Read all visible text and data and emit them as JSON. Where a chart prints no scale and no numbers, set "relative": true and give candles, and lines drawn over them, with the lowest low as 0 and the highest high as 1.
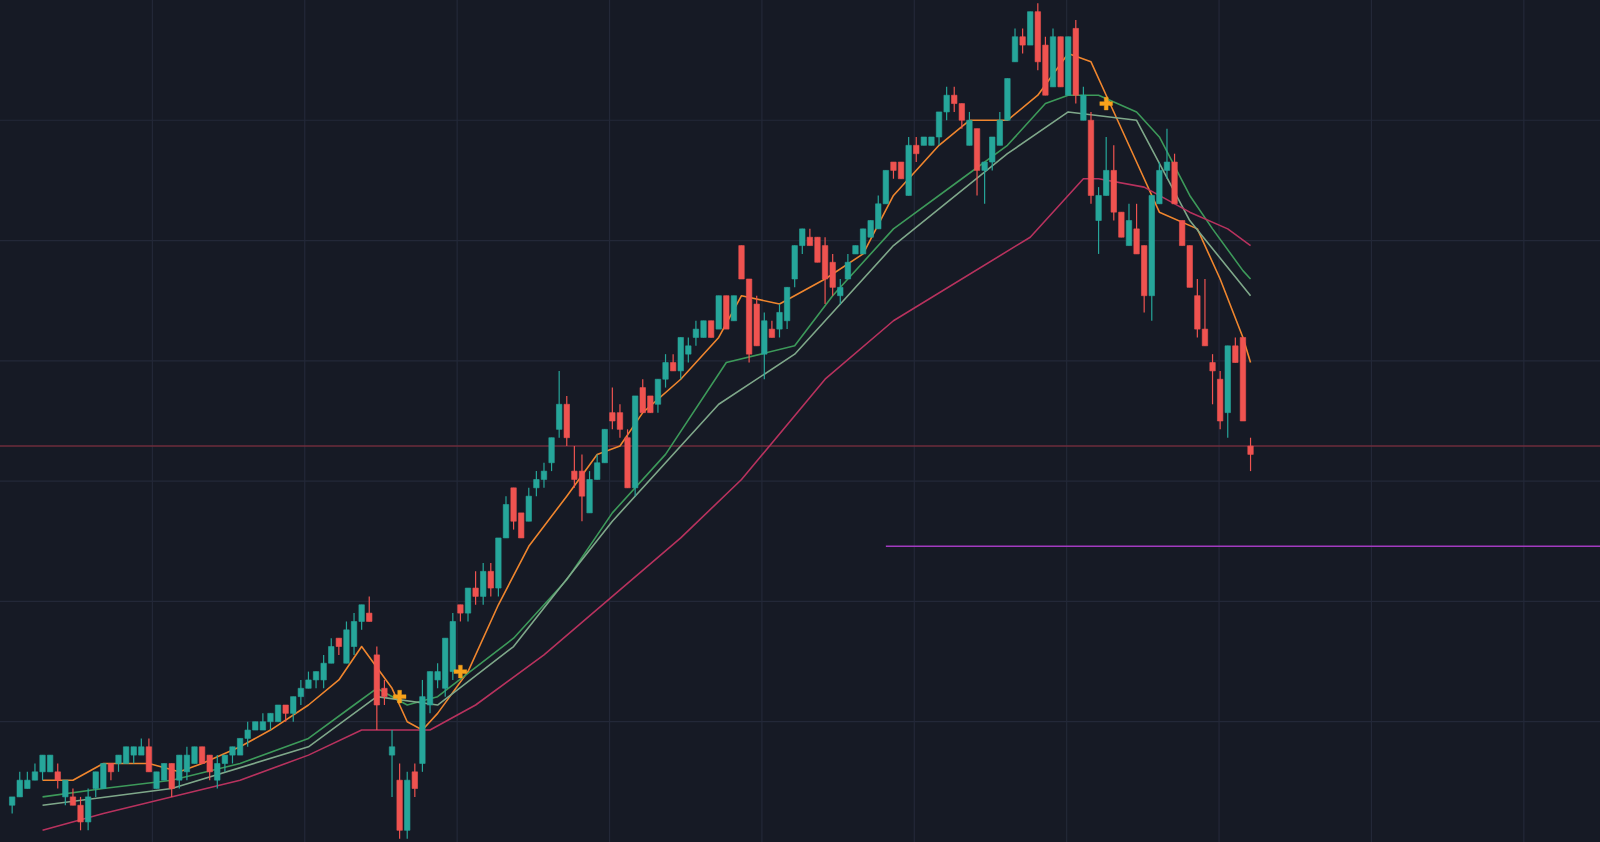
{
  "chart_data": {
    "type": "candlestick",
    "relative": true,
    "grid": true,
    "colors": [
      "#26a69a",
      "#26a69a",
      "#26a69a",
      "#26a69a",
      "#26a69a",
      "#26a69a",
      "#ef5350",
      "#26a69a",
      "#ef5350",
      "#ef5350",
      "#26a69a",
      "#26a69a",
      "#26a69a",
      "#ef5350",
      "#26a69a",
      "#26a69a",
      "#26a69a",
      "#26a69a",
      "#ef5350",
      "#26a69a",
      "#26a69a",
      "#ef5350",
      "#26a69a",
      "#26a69a",
      "#26a69a",
      "#ef5350",
      "#ef5350",
      "#26a69a",
      "#26a69a",
      "#26a69a",
      "#26a69a",
      "#26a69a",
      "#26a69a",
      "#26a69a",
      "#26a69a",
      "#26a69a",
      "#ef5350",
      "#26a69a",
      "#26a69a",
      "#26a69a",
      "#26a69a",
      "#26a69a",
      "#26a69a",
      "#ef5350",
      "#26a69a",
      "#26a69a",
      "#26a69a",
      "#ef5350",
      "#ef5350",
      "#ef5350",
      "#26a69a",
      "#ef5350",
      "#26a69a",
      "#ef5350",
      "#26a69a",
      "#26a69a",
      "#26a69a",
      "#26a69a",
      "#26a69a",
      "#ef5350",
      "#26a69a",
      "#ef5350",
      "#26a69a",
      "#ef5350",
      "#26a69a",
      "#26a69a",
      "#ef5350",
      "#ef5350",
      "#26a69a",
      "#26a69a",
      "#26a69a",
      "#26a69a",
      "#26a69a",
      "#ef5350",
      "#ef5350",
      "#ef5350",
      "#26a69a",
      "#26a69a",
      "#26a69a",
      "#ef5350",
      "#ef5350",
      "#ef5350",
      "#26a69a",
      "#ef5350",
      "#ef5350",
      "#26a69a",
      "#26a69a",
      "#ef5350",
      "#26a69a",
      "#26a69a",
      "#26a69a",
      "#26a69a",
      "#ef5350",
      "#26a69a",
      "#ef5350",
      "#26a69a",
      "#ef5350",
      "#ef5350",
      "#ef5350",
      "#26a69a",
      "#ef5350",
      "#26a69a",
      "#26a69a",
      "#26a69a",
      "#26a69a",
      "#ef5350",
      "#ef5350",
      "#ef5350",
      "#ef5350",
      "#26a69a",
      "#26a69a",
      "#26a69a",
      "#26a69a",
      "#26a69a",
      "#26a69a",
      "#26a69a",
      "#ef5350",
      "#ef5350",
      "#26a69a",
      "#ef5350",
      "#26a69a",
      "#26a69a",
      "#26a69a",
      "#26a69a",
      "#ef5350",
      "#ef5350",
      "#26a69a",
      "#ef5350",
      "#26a69a",
      "#26a69a",
      "#26a69a",
      "#26a69a",
      "#26a69a",
      "#ef5350",
      "#26a69a",
      "#ef5350",
      "#ef5350",
      "#26a69a",
      "#ef5350",
      "#26a69a",
      "#ef5350",
      "#26a69a",
      "#ef5350",
      "#26a69a",
      "#26a69a",
      "#ef5350",
      "#ef5350",
      "#26a69a",
      "#ef5350",
      "#ef5350",
      "#26a69a",
      "#26a69a",
      "#26a69a",
      "#ef5350",
      "#ef5350",
      "#ef5350",
      "#ef5350",
      "#ef5350",
      "#ef5350",
      "#ef5350",
      "#26a69a",
      "#ef5350",
      "#ef5350",
      "#ef5350",
      null,
      null,
      null,
      null,
      null,
      null,
      null,
      null,
      null,
      null,
      null,
      null,
      null,
      null,
      null,
      null,
      null,
      null,
      null,
      null,
      null,
      null,
      null,
      null,
      null,
      null,
      null,
      null,
      null,
      null,
      null,
      null,
      null,
      null,
      null,
      null,
      null,
      null,
      null,
      null,
      null,
      null,
      null,
      null,
      null,
      null
    ],
    "categories": [
      null,
      null,
      null,
      null,
      null,
      null,
      null,
      null,
      null,
      null,
      null,
      null,
      null,
      null,
      null,
      null,
      null,
      null,
      null,
      null,
      null,
      null,
      null,
      null,
      null,
      null,
      null,
      null,
      null,
      null,
      null,
      null,
      null,
      null,
      null,
      null,
      null,
      null,
      null,
      null,
      null,
      null,
      null,
      null,
      null,
      null,
      null,
      null,
      null,
      null,
      null,
      null,
      null,
      null,
      null,
      null,
      null,
      null,
      null,
      null,
      null,
      null,
      null,
      null,
      null,
      null,
      null,
      null,
      null,
      null,
      null,
      null,
      null,
      null,
      null,
      null,
      null,
      null,
      null,
      null,
      null,
      null,
      null,
      null,
      null,
      null,
      null,
      null,
      null,
      null,
      null,
      null,
      null,
      null,
      null,
      null,
      null,
      null,
      null,
      null,
      null,
      null,
      null,
      null,
      null,
      null,
      null,
      null,
      null,
      null,
      null,
      null,
      null,
      null,
      null,
      null,
      null,
      null,
      null,
      null,
      null,
      null,
      null,
      null,
      null,
      null,
      null,
      null,
      null,
      null,
      null,
      null,
      null,
      null,
      null,
      null,
      null,
      null,
      null,
      null,
      null,
      null,
      null,
      null,
      null,
      null,
      null,
      null,
      null,
      null,
      null,
      null,
      null,
      null,
      null,
      null,
      null,
      null,
      null,
      null,
      null,
      null,
      null,
      null,
      null,
      null,
      null,
      null,
      null,
      null,
      null,
      null,
      null,
      null,
      null,
      null,
      null,
      null,
      null,
      null,
      null,
      null,
      null,
      null,
      null,
      null,
      null,
      null,
      null,
      null,
      null,
      null,
      null,
      null,
      null,
      null,
      null,
      null,
      null,
      null,
      null,
      null,
      null,
      null,
      null,
      null,
      null,
      null,
      null,
      null
    ],
    "ohlc": [
      [
        0.04,
        0.05,
        0.03,
        0.05
      ],
      [
        0.05,
        0.08,
        0.05,
        0.07
      ],
      [
        0.06,
        0.08,
        0.06,
        0.07
      ],
      [
        0.07,
        0.09,
        0.07,
        0.08
      ],
      [
        0.08,
        0.1,
        0.07,
        0.1
      ],
      [
        0.08,
        0.1,
        0.08,
        0.1
      ],
      [
        0.08,
        0.09,
        0.06,
        0.07
      ],
      [
        0.05,
        0.07,
        0.04,
        0.07
      ],
      [
        0.05,
        0.06,
        0.04,
        0.04
      ],
      [
        0.04,
        0.05,
        0.01,
        0.02
      ],
      [
        0.02,
        0.06,
        0.01,
        0.05
      ],
      [
        0.06,
        0.08,
        0.05,
        0.08
      ],
      [
        0.06,
        0.09,
        0.06,
        0.09
      ],
      [
        0.09,
        0.09,
        0.07,
        0.08
      ],
      [
        0.09,
        0.1,
        0.08,
        0.1
      ],
      [
        0.09,
        0.11,
        0.09,
        0.11
      ],
      [
        0.1,
        0.11,
        0.09,
        0.11
      ],
      [
        0.1,
        0.12,
        0.1,
        0.11
      ],
      [
        0.11,
        0.12,
        0.08,
        0.08
      ],
      [
        0.06,
        0.08,
        0.06,
        0.08
      ],
      [
        0.07,
        0.09,
        0.07,
        0.09
      ],
      [
        0.09,
        0.09,
        0.05,
        0.06
      ],
      [
        0.07,
        0.1,
        0.06,
        0.1
      ],
      [
        0.08,
        0.11,
        0.07,
        0.1
      ],
      [
        0.09,
        0.11,
        0.09,
        0.11
      ],
      [
        0.11,
        0.11,
        0.09,
        0.09
      ],
      [
        0.1,
        0.1,
        0.07,
        0.08
      ],
      [
        0.07,
        0.1,
        0.06,
        0.09
      ],
      [
        0.09,
        0.1,
        0.08,
        0.1
      ],
      [
        0.1,
        0.11,
        0.09,
        0.11
      ],
      [
        0.1,
        0.12,
        0.1,
        0.12
      ],
      [
        0.12,
        0.14,
        0.11,
        0.13
      ],
      [
        0.13,
        0.14,
        0.13,
        0.14
      ],
      [
        0.13,
        0.15,
        0.13,
        0.14
      ],
      [
        0.14,
        0.15,
        0.13,
        0.15
      ],
      [
        0.14,
        0.16,
        0.14,
        0.16
      ],
      [
        0.16,
        0.16,
        0.14,
        0.15
      ],
      [
        0.15,
        0.17,
        0.14,
        0.17
      ],
      [
        0.17,
        0.19,
        0.16,
        0.18
      ],
      [
        0.18,
        0.2,
        0.18,
        0.19
      ],
      [
        0.19,
        0.2,
        0.18,
        0.2
      ],
      [
        0.19,
        0.22,
        0.18,
        0.21
      ],
      [
        0.21,
        0.24,
        0.21,
        0.23
      ],
      [
        0.24,
        0.24,
        0.22,
        0.23
      ],
      [
        0.21,
        0.26,
        0.21,
        0.25
      ],
      [
        0.23,
        0.27,
        0.22,
        0.26
      ],
      [
        0.26,
        0.28,
        0.25,
        0.28
      ],
      [
        0.27,
        0.29,
        0.26,
        0.26
      ],
      [
        0.22,
        0.23,
        0.13,
        0.16
      ],
      [
        0.18,
        0.19,
        0.16,
        0.17
      ],
      [
        0.1,
        0.13,
        0.05,
        0.11
      ],
      [
        0.07,
        0.09,
        0.0,
        0.01
      ],
      [
        0.01,
        0.08,
        0.0,
        0.07
      ],
      [
        0.08,
        0.09,
        0.05,
        0.06
      ],
      [
        0.09,
        0.19,
        0.08,
        0.17
      ],
      [
        0.16,
        0.2,
        0.15,
        0.2
      ],
      [
        0.19,
        0.21,
        0.18,
        0.2
      ],
      [
        0.18,
        0.24,
        0.17,
        0.24
      ],
      [
        0.2,
        0.27,
        0.19,
        0.26
      ],
      [
        0.28,
        0.28,
        0.26,
        0.27
      ],
      [
        0.27,
        0.3,
        0.26,
        0.3
      ],
      [
        0.3,
        0.32,
        0.28,
        0.29
      ],
      [
        0.29,
        0.33,
        0.28,
        0.32
      ],
      [
        0.32,
        0.33,
        0.29,
        0.3
      ],
      [
        0.3,
        0.36,
        0.29,
        0.36
      ],
      [
        0.36,
        0.41,
        0.36,
        0.4
      ],
      [
        0.42,
        0.42,
        0.37,
        0.38
      ],
      [
        0.39,
        0.39,
        0.36,
        0.36
      ],
      [
        0.38,
        0.42,
        0.38,
        0.41
      ],
      [
        0.42,
        0.44,
        0.41,
        0.43
      ],
      [
        0.43,
        0.45,
        0.42,
        0.44
      ],
      [
        0.45,
        0.48,
        0.44,
        0.48
      ],
      [
        0.49,
        0.56,
        0.48,
        0.52
      ],
      [
        0.52,
        0.53,
        0.47,
        0.48
      ],
      [
        0.44,
        0.47,
        0.42,
        0.43
      ],
      [
        0.44,
        0.46,
        0.38,
        0.41
      ],
      [
        0.39,
        0.44,
        0.39,
        0.43
      ],
      [
        0.43,
        0.46,
        0.43,
        0.45
      ],
      [
        0.45,
        0.49,
        0.45,
        0.49
      ],
      [
        0.51,
        0.54,
        0.49,
        0.5
      ],
      [
        0.51,
        0.52,
        0.48,
        0.49
      ],
      [
        0.48,
        0.49,
        0.42,
        0.42
      ],
      [
        0.42,
        0.53,
        0.41,
        0.53
      ],
      [
        0.54,
        0.55,
        0.51,
        0.51
      ],
      [
        0.53,
        0.53,
        0.51,
        0.51
      ],
      [
        0.52,
        0.55,
        0.51,
        0.55
      ],
      [
        0.55,
        0.58,
        0.54,
        0.57
      ],
      [
        0.57,
        0.58,
        0.56,
        0.56
      ],
      [
        0.56,
        0.6,
        0.55,
        0.6
      ],
      [
        0.58,
        0.6,
        0.57,
        0.59
      ],
      [
        0.6,
        0.62,
        0.59,
        0.61
      ],
      [
        0.6,
        0.62,
        0.6,
        0.62
      ],
      [
        0.62,
        0.62,
        0.6,
        0.6
      ],
      [
        0.61,
        0.65,
        0.61,
        0.65
      ],
      [
        0.65,
        0.65,
        0.61,
        0.61
      ],
      [
        0.62,
        0.65,
        0.62,
        0.65
      ],
      [
        0.71,
        0.71,
        0.67,
        0.67
      ],
      [
        0.67,
        0.67,
        0.57,
        0.58
      ],
      [
        0.64,
        0.65,
        0.59,
        0.59
      ],
      [
        0.58,
        0.63,
        0.55,
        0.62
      ],
      [
        0.61,
        0.62,
        0.6,
        0.6
      ],
      [
        0.61,
        0.64,
        0.6,
        0.63
      ],
      [
        0.62,
        0.66,
        0.61,
        0.66
      ],
      [
        0.67,
        0.71,
        0.66,
        0.71
      ],
      [
        0.71,
        0.73,
        0.7,
        0.73
      ],
      [
        0.72,
        0.73,
        0.71,
        0.71
      ],
      [
        0.72,
        0.72,
        0.69,
        0.69
      ],
      [
        0.71,
        0.72,
        0.64,
        0.67
      ],
      [
        0.69,
        0.7,
        0.65,
        0.66
      ],
      [
        0.65,
        0.67,
        0.64,
        0.66
      ],
      [
        0.67,
        0.7,
        0.67,
        0.69
      ],
      [
        0.7,
        0.71,
        0.7,
        0.71
      ],
      [
        0.7,
        0.73,
        0.7,
        0.73
      ],
      [
        0.72,
        0.74,
        0.72,
        0.74
      ],
      [
        0.73,
        0.77,
        0.73,
        0.76
      ],
      [
        0.76,
        0.8,
        0.76,
        0.8
      ],
      [
        0.81,
        0.81,
        0.79,
        0.8
      ],
      [
        0.81,
        0.81,
        0.79,
        0.79
      ],
      [
        0.77,
        0.84,
        0.77,
        0.83
      ],
      [
        0.83,
        0.84,
        0.81,
        0.82
      ],
      [
        0.83,
        0.84,
        0.83,
        0.84
      ],
      [
        0.83,
        0.84,
        0.83,
        0.84
      ],
      [
        0.84,
        0.87,
        0.83,
        0.87
      ],
      [
        0.87,
        0.9,
        0.86,
        0.89
      ],
      [
        0.89,
        0.9,
        0.87,
        0.88
      ],
      [
        0.88,
        0.88,
        0.85,
        0.86
      ],
      [
        0.83,
        0.87,
        0.83,
        0.86
      ],
      [
        0.85,
        0.85,
        0.77,
        0.8
      ],
      [
        0.8,
        0.81,
        0.76,
        0.81
      ],
      [
        0.81,
        0.84,
        0.8,
        0.84
      ],
      [
        0.83,
        0.87,
        0.83,
        0.86
      ],
      [
        0.86,
        0.91,
        0.86,
        0.91
      ],
      [
        0.93,
        0.97,
        0.93,
        0.96
      ],
      [
        0.96,
        0.97,
        0.94,
        0.95
      ],
      [
        0.95,
        0.99,
        0.95,
        0.99
      ],
      [
        0.99,
        1.0,
        0.92,
        0.93
      ],
      [
        0.95,
        0.96,
        0.89,
        0.89
      ],
      [
        0.9,
        0.97,
        0.9,
        0.96
      ],
      [
        0.96,
        0.96,
        0.9,
        0.9
      ],
      [
        0.89,
        0.96,
        0.89,
        0.96
      ],
      [
        0.97,
        0.98,
        0.88,
        0.89
      ],
      [
        0.86,
        0.9,
        0.86,
        0.89
      ],
      [
        0.86,
        0.87,
        0.76,
        0.77
      ],
      [
        0.74,
        0.78,
        0.7,
        0.77
      ],
      [
        0.77,
        0.84,
        0.77,
        0.8
      ],
      [
        0.8,
        0.83,
        0.74,
        0.75
      ],
      [
        0.75,
        0.75,
        0.72,
        0.72
      ],
      [
        0.71,
        0.76,
        0.71,
        0.74
      ],
      [
        0.73,
        0.76,
        0.7,
        0.7
      ],
      [
        0.71,
        0.71,
        0.63,
        0.65
      ],
      [
        0.65,
        0.77,
        0.62,
        0.77
      ],
      [
        0.76,
        0.81,
        0.76,
        0.8
      ],
      [
        0.8,
        0.85,
        0.79,
        0.81
      ],
      [
        0.81,
        0.82,
        0.76,
        0.76
      ],
      [
        0.74,
        0.74,
        0.71,
        0.71
      ],
      [
        0.71,
        0.71,
        0.66,
        0.66
      ],
      [
        0.65,
        0.67,
        0.6,
        0.61
      ],
      [
        0.61,
        0.67,
        0.59,
        0.59
      ],
      [
        0.57,
        0.58,
        0.52,
        0.56
      ],
      [
        0.55,
        0.56,
        0.49,
        0.5
      ],
      [
        0.51,
        0.59,
        0.48,
        0.59
      ],
      [
        0.59,
        0.6,
        0.57,
        0.57
      ],
      [
        0.6,
        0.6,
        0.5,
        0.5
      ],
      [
        0.47,
        0.48,
        0.44,
        0.46
      ],
      null,
      null,
      null,
      null,
      null,
      null,
      null,
      null,
      null,
      null,
      null,
      null,
      null,
      null,
      null,
      null,
      null,
      null,
      null,
      null,
      null,
      null,
      null,
      null,
      null,
      null,
      null,
      null,
      null,
      null,
      null,
      null,
      null,
      null,
      null,
      null,
      null,
      null,
      null,
      null,
      null,
      null,
      null,
      null,
      null,
      null
    ],
    "series": [
      {
        "type": "line",
        "color": "#f0862e",
        "values": [
          null,
          null,
          null,
          null,
          0.07,
          null,
          null,
          null,
          0.07,
          null,
          null,
          null,
          0.09,
          null,
          null,
          null,
          null,
          null,
          0.09,
          null,
          null,
          null,
          0.08,
          null,
          null,
          0.09,
          null,
          null,
          null,
          null,
          0.11,
          null,
          null,
          null,
          0.13,
          null,
          null,
          null,
          null,
          0.16,
          null,
          null,
          null,
          0.19,
          null,
          null,
          0.23,
          null,
          null,
          null,
          0.18,
          null,
          0.14,
          null,
          0.13,
          null,
          0.15,
          null,
          null,
          null,
          0.2,
          null,
          null,
          null,
          0.28,
          null,
          null,
          null,
          0.35,
          null,
          null,
          null,
          null,
          0.41,
          null,
          null,
          null,
          0.46,
          null,
          null,
          0.47,
          null,
          null,
          0.51,
          null,
          null,
          null,
          null,
          0.55,
          null,
          null,
          null,
          null,
          0.6,
          null,
          null,
          0.65,
          null,
          null,
          null,
          null,
          0.64,
          null,
          null,
          null,
          null,
          null,
          0.67,
          null,
          null,
          null,
          null,
          0.7,
          null,
          null,
          null,
          0.77,
          null,
          null,
          null,
          null,
          null,
          0.83,
          null,
          null,
          null,
          0.86,
          null,
          null,
          null,
          null,
          0.86,
          null,
          null,
          null,
          0.89,
          null,
          null,
          null,
          0.94,
          null,
          null,
          0.93,
          null,
          0.89,
          null,
          null,
          null,
          0.81,
          null,
          null,
          0.75,
          null,
          null,
          null,
          null,
          0.73,
          null,
          null,
          0.67,
          null,
          null,
          0.6,
          0.57,
          null,
          null,
          null,
          null,
          null,
          null,
          null,
          null,
          null,
          null,
          null,
          null,
          null,
          null,
          null,
          null,
          null,
          null,
          null,
          null,
          null,
          null,
          null,
          null,
          null,
          null,
          null,
          null,
          null,
          null,
          null,
          null,
          null,
          null,
          null,
          null,
          null,
          null,
          null,
          null,
          null,
          null,
          null,
          null,
          null,
          null
        ]
      },
      {
        "type": "line",
        "color": "#3d9a5a",
        "values": [
          null,
          null,
          null,
          null,
          0.05,
          null,
          null,
          null,
          null,
          null,
          null,
          null,
          0.06,
          null,
          null,
          null,
          null,
          null,
          null,
          null,
          null,
          0.07,
          null,
          null,
          null,
          null,
          null,
          null,
          null,
          null,
          0.09,
          null,
          null,
          null,
          null,
          null,
          null,
          null,
          null,
          0.12,
          null,
          null,
          null,
          null,
          null,
          0.16,
          null,
          null,
          0.18,
          null,
          null,
          null,
          0.16,
          null,
          null,
          null,
          0.17,
          null,
          null,
          null,
          null,
          null,
          null,
          null,
          null,
          null,
          0.24,
          null,
          null,
          null,
          null,
          null,
          null,
          0.31,
          null,
          null,
          null,
          null,
          null,
          0.39,
          null,
          null,
          null,
          null,
          null,
          null,
          0.46,
          null,
          null,
          null,
          null,
          null,
          null,
          null,
          0.57,
          null,
          null,
          null,
          null,
          null,
          null,
          null,
          null,
          0.59,
          null,
          null,
          null,
          null,
          0.65,
          null,
          null,
          null,
          null,
          null,
          null,
          null,
          0.73,
          null,
          null,
          null,
          null,
          null,
          null,
          null,
          null,
          0.79,
          null,
          null,
          null,
          null,
          null,
          0.83,
          null,
          null,
          null,
          null,
          0.88,
          null,
          null,
          0.89,
          null,
          null,
          null,
          0.89,
          null,
          null,
          null,
          null,
          0.87,
          null,
          null,
          0.84,
          null,
          null,
          null,
          0.77,
          null,
          null,
          0.73,
          null,
          null,
          null,
          0.68,
          0.67,
          null,
          null,
          null,
          null,
          null,
          null,
          null,
          null,
          null,
          null,
          null,
          null,
          null,
          null,
          null,
          null,
          null,
          null,
          null,
          null,
          null,
          null,
          null,
          null,
          null,
          null,
          null,
          null,
          null,
          null,
          null,
          null,
          null,
          null,
          null,
          null,
          null,
          null,
          null,
          null,
          null,
          null,
          null,
          null,
          null,
          null
        ]
      },
      {
        "type": "line",
        "color": "#7fa88a",
        "values": [
          null,
          null,
          null,
          null,
          0.04,
          null,
          null,
          null,
          null,
          null,
          null,
          null,
          null,
          null,
          null,
          null,
          null,
          null,
          null,
          null,
          null,
          0.06,
          null,
          null,
          null,
          null,
          null,
          null,
          null,
          null,
          null,
          null,
          null,
          null,
          null,
          null,
          null,
          null,
          null,
          0.11,
          null,
          null,
          null,
          null,
          null,
          null,
          null,
          null,
          0.17,
          null,
          null,
          null,
          null,
          null,
          null,
          null,
          0.16,
          null,
          null,
          null,
          null,
          null,
          null,
          null,
          null,
          null,
          0.23,
          null,
          null,
          null,
          null,
          null,
          null,
          null,
          null,
          null,
          null,
          null,
          null,
          0.38,
          null,
          null,
          null,
          null,
          null,
          null,
          null,
          null,
          null,
          null,
          null,
          null,
          null,
          0.52,
          null,
          null,
          null,
          null,
          null,
          null,
          null,
          null,
          null,
          0.58,
          null,
          null,
          null,
          null,
          null,
          null,
          null,
          null,
          null,
          null,
          null,
          null,
          0.71,
          null,
          null,
          null,
          null,
          null,
          null,
          null,
          null,
          null,
          null,
          null,
          null,
          null,
          null,
          0.82,
          null,
          null,
          null,
          null,
          null,
          null,
          null,
          0.87,
          null,
          null,
          null,
          null,
          null,
          null,
          null,
          null,
          0.86,
          null,
          null,
          null,
          null,
          null,
          null,
          0.74,
          null,
          null,
          null,
          null,
          null,
          null,
          null,
          0.65,
          null,
          null,
          null,
          null,
          null,
          null,
          null,
          null,
          null,
          null,
          null,
          null,
          null,
          null,
          null,
          null,
          null,
          null,
          null,
          null,
          null,
          null,
          null,
          null,
          null,
          null,
          null,
          null,
          null,
          null,
          null,
          null,
          null,
          null,
          null,
          null,
          null,
          null,
          null,
          null,
          null,
          null,
          null,
          null,
          null,
          null
        ]
      },
      {
        "type": "line",
        "color": "#b8325e",
        "values": [
          null,
          null,
          null,
          null,
          0.01,
          null,
          null,
          null,
          null,
          null,
          null,
          null,
          0.03,
          null,
          null,
          null,
          null,
          null,
          null,
          null,
          null,
          0.05,
          null,
          null,
          null,
          null,
          null,
          null,
          null,
          null,
          0.07,
          null,
          null,
          null,
          null,
          null,
          null,
          null,
          null,
          0.1,
          null,
          null,
          null,
          null,
          null,
          null,
          0.13,
          null,
          null,
          null,
          null,
          null,
          0.13,
          null,
          null,
          0.13,
          null,
          null,
          null,
          null,
          null,
          0.16,
          null,
          null,
          null,
          null,
          null,
          null,
          null,
          null,
          0.22,
          null,
          null,
          null,
          null,
          null,
          null,
          null,
          null,
          0.29,
          null,
          null,
          null,
          null,
          null,
          null,
          null,
          null,
          0.36,
          null,
          null,
          null,
          null,
          null,
          null,
          null,
          0.43,
          null,
          null,
          null,
          null,
          null,
          null,
          null,
          null,
          null,
          null,
          0.55,
          null,
          null,
          null,
          null,
          null,
          null,
          null,
          null,
          0.62,
          null,
          null,
          null,
          null,
          null,
          null,
          null,
          null,
          0.67,
          null,
          null,
          null,
          null,
          null,
          null,
          null,
          null,
          0.72,
          null,
          null,
          null,
          null,
          null,
          null,
          0.79,
          null,
          0.79,
          null,
          null,
          null,
          null,
          null,
          0.78,
          null,
          null,
          null,
          null,
          null,
          0.75,
          null,
          null,
          null,
          null,
          0.73,
          null,
          null,
          0.71,
          null,
          null,
          null,
          null,
          null,
          null,
          null,
          null,
          null,
          null,
          null,
          null,
          null,
          null,
          null,
          null,
          null,
          null,
          null,
          null,
          null,
          null,
          null,
          null,
          null,
          null,
          null,
          null,
          null,
          null,
          null,
          null,
          null,
          null,
          null,
          null,
          null,
          null,
          null,
          null,
          null,
          null,
          null,
          null,
          null,
          null
        ]
      },
      {
        "type": "line",
        "color": "#a23bc0",
        "values": [
          null,
          null,
          null,
          null,
          null,
          null,
          null,
          null,
          null,
          null,
          null,
          null,
          null,
          null,
          null,
          null,
          null,
          null,
          null,
          null,
          null,
          null,
          null,
          null,
          null,
          null,
          null,
          null,
          null,
          null,
          null,
          null,
          null,
          null,
          null,
          null,
          null,
          null,
          null,
          null,
          null,
          null,
          null,
          null,
          null,
          null,
          null,
          null,
          null,
          null,
          null,
          null,
          null,
          null,
          null,
          null,
          null,
          null,
          null,
          null,
          null,
          null,
          null,
          null,
          null,
          null,
          null,
          null,
          null,
          null,
          null,
          null,
          null,
          null,
          null,
          null,
          null,
          null,
          null,
          null,
          null,
          null,
          null,
          null,
          null,
          null,
          null,
          null,
          null,
          null,
          null,
          null,
          null,
          null,
          null,
          null,
          null,
          null,
          null,
          null,
          null,
          null,
          null,
          null,
          null,
          null,
          null,
          null,
          null,
          null,
          null,
          null,
          null,
          null,
          null,
          0.35,
          null,
          null,
          null,
          null,
          null,
          null,
          null,
          null,
          null,
          null,
          null,
          null,
          null,
          null,
          null,
          null,
          null,
          null,
          null,
          null,
          null,
          null,
          null,
          null,
          null,
          null,
          null,
          null,
          null,
          null,
          null,
          null,
          null,
          null,
          null,
          null,
          null,
          null,
          null,
          null,
          null,
          null,
          null,
          null,
          null,
          null,
          null,
          null,
          null,
          null,
          null,
          null,
          null,
          null,
          null,
          null,
          null,
          null,
          null,
          null,
          null,
          null,
          null,
          null,
          null,
          null,
          null,
          null,
          null,
          null,
          null,
          null,
          null,
          null,
          null,
          null,
          null,
          null,
          null,
          null,
          null,
          null,
          null,
          null,
          null,
          null,
          null,
          null,
          null,
          null,
          null,
          null,
          null,
          0.35
        ]
      },
      {
        "type": "scatter",
        "marker": "cross",
        "color": "#f7a21b",
        "values": [
          null,
          null,
          null,
          null,
          null,
          null,
          null,
          null,
          null,
          null,
          null,
          null,
          null,
          null,
          null,
          null,
          null,
          null,
          null,
          null,
          null,
          null,
          null,
          null,
          null,
          null,
          null,
          null,
          null,
          null,
          null,
          null,
          null,
          null,
          null,
          null,
          null,
          null,
          null,
          null,
          null,
          null,
          null,
          null,
          null,
          null,
          null,
          null,
          null,
          null,
          null,
          0.17,
          null,
          null,
          null,
          null,
          null,
          null,
          null,
          0.2,
          null,
          null,
          null,
          null,
          null,
          null,
          null,
          null,
          null,
          null,
          null,
          null,
          null,
          null,
          null,
          null,
          null,
          null,
          null,
          null,
          null,
          null,
          null,
          null,
          null,
          null,
          null,
          null,
          null,
          null,
          null,
          null,
          null,
          null,
          null,
          null,
          null,
          null,
          null,
          null,
          null,
          null,
          null,
          null,
          null,
          null,
          null,
          null,
          null,
          null,
          null,
          null,
          null,
          null,
          null,
          null,
          null,
          null,
          null,
          null,
          null,
          null,
          null,
          null,
          null,
          null,
          null,
          null,
          null,
          null,
          null,
          null,
          null,
          null,
          null,
          null,
          null,
          null,
          null,
          null,
          null,
          null,
          null,
          null,
          0.88,
          null,
          null,
          null,
          null,
          null,
          null,
          null,
          null,
          null,
          null,
          null,
          null,
          null,
          null,
          null,
          null,
          null,
          null,
          null,
          null,
          null,
          null,
          null,
          null,
          null,
          null,
          null,
          null,
          null,
          null,
          null,
          null,
          null,
          null,
          null,
          null,
          null,
          null,
          null,
          null,
          null,
          null,
          null,
          null,
          null,
          null,
          null,
          null,
          null,
          null,
          null,
          null,
          null,
          null,
          null,
          null,
          null,
          null,
          null,
          null,
          null,
          null,
          null,
          null,
          null
        ]
      }
    ],
    "ref_lines": [
      {
        "axis": "y",
        "value": 0.47,
        "color": "#6e2c3b"
      }
    ]
  }
}
